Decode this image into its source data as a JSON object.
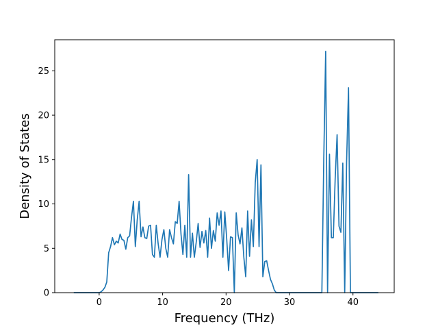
{
  "chart_data": {
    "type": "line",
    "title": "",
    "xlabel": "Frequency (THz)",
    "ylabel": "Density of States",
    "xlim": [
      -7,
      46.5
    ],
    "ylim": [
      0,
      28.5
    ],
    "xticks": [
      0,
      10,
      20,
      30,
      40
    ],
    "yticks": [
      0,
      5,
      10,
      15,
      20,
      25
    ],
    "grid": false,
    "legend": "none",
    "line_color": "#1f77b4",
    "series": [
      {
        "x": [
          -4,
          0,
          0.3,
          0.6,
          0.9,
          1.2,
          1.5,
          1.8,
          2.1,
          2.4,
          2.7,
          3.0,
          3.3,
          3.6,
          3.9,
          4.2,
          4.5,
          4.8,
          5.1,
          5.4,
          5.7,
          6.0,
          6.3,
          6.6,
          6.9,
          7.2,
          7.5,
          7.8,
          8.1,
          8.4,
          8.7,
          9.0,
          9.3,
          9.6,
          9.9,
          10.2,
          10.5,
          10.8,
          11.1,
          11.4,
          11.7,
          12.0,
          12.3,
          12.6,
          12.9,
          13.2,
          13.5,
          13.8,
          14.1,
          14.4,
          14.7,
          15.0,
          15.3,
          15.6,
          15.9,
          16.2,
          16.5,
          16.8,
          17.1,
          17.4,
          17.7,
          18.0,
          18.3,
          18.6,
          18.9,
          19.2,
          19.5,
          19.8,
          20.1,
          20.4,
          20.7,
          21.0,
          21.3,
          21.6,
          21.9,
          22.2,
          22.5,
          22.8,
          23.1,
          23.4,
          23.7,
          24.0,
          24.3,
          24.6,
          24.9,
          25.2,
          25.5,
          25.8,
          26.1,
          26.4,
          26.7,
          27.0,
          27.3,
          27.6,
          27.9,
          28.2,
          28.5,
          28.8,
          29.1,
          35.1,
          35.4,
          35.7,
          36.0,
          36.3,
          36.6,
          36.9,
          37.2,
          37.5,
          37.8,
          38.1,
          38.4,
          38.7,
          39.0,
          39.3,
          39.6,
          39.9,
          40.2,
          40.5,
          44
        ],
        "y": [
          0,
          0,
          0.1,
          0.3,
          0.6,
          1.2,
          4.5,
          5.2,
          6.2,
          5.4,
          5.8,
          5.6,
          6.6,
          6.0,
          5.9,
          4.9,
          6.2,
          6.4,
          8.5,
          10.3,
          5.2,
          8.2,
          10.3,
          6.3,
          7.4,
          6.2,
          6.1,
          7.5,
          7.6,
          4.3,
          4.0,
          7.6,
          5.5,
          4.0,
          6.0,
          7.1,
          5.0,
          4.0,
          7.1,
          6.2,
          5.5,
          8.0,
          7.8,
          10.3,
          6.6,
          4.3,
          7.6,
          4.0,
          13.3,
          4.0,
          6.7,
          4.0,
          5.7,
          7.8,
          5.1,
          6.9,
          5.6,
          7.0,
          4.0,
          8.4,
          5.0,
          7.0,
          5.8,
          9.0,
          7.6,
          9.2,
          4.0,
          9.1,
          6.1,
          2.5,
          6.3,
          6.2,
          0.0,
          9.0,
          6.5,
          5.5,
          7.3,
          4.0,
          1.8,
          9.2,
          4.1,
          8.2,
          5.2,
          12.4,
          15.0,
          5.2,
          14.4,
          1.8,
          3.5,
          3.6,
          2.5,
          1.5,
          1.0,
          0.3,
          0.0,
          0,
          0,
          0,
          0,
          0,
          15.0,
          27.2,
          0.0,
          15.6,
          6.2,
          6.2,
          12.9,
          17.8,
          7.5,
          6.8,
          14.6,
          0.0,
          14.8,
          23.1,
          0.0,
          0,
          0,
          0,
          0
        ]
      }
    ]
  }
}
